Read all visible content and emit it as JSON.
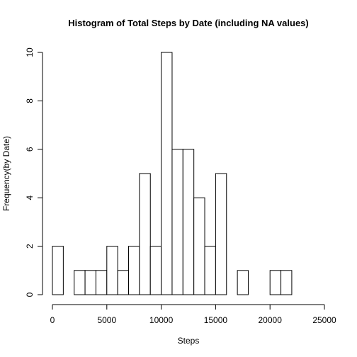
{
  "chart_data": {
    "type": "bar",
    "title": "Histogram of Total Steps by Date (including NA values)",
    "xlabel": "Steps",
    "ylabel": "Frequency(by Date)",
    "xlim": [
      0,
      25000
    ],
    "ylim": [
      0,
      10
    ],
    "bin_width": 1000,
    "bins": [
      {
        "start": 0,
        "end": 1000,
        "count": 2
      },
      {
        "start": 1000,
        "end": 2000,
        "count": 0
      },
      {
        "start": 2000,
        "end": 3000,
        "count": 1
      },
      {
        "start": 3000,
        "end": 4000,
        "count": 1
      },
      {
        "start": 4000,
        "end": 5000,
        "count": 1
      },
      {
        "start": 5000,
        "end": 6000,
        "count": 2
      },
      {
        "start": 6000,
        "end": 7000,
        "count": 1
      },
      {
        "start": 7000,
        "end": 8000,
        "count": 2
      },
      {
        "start": 8000,
        "end": 9000,
        "count": 5
      },
      {
        "start": 9000,
        "end": 10000,
        "count": 2
      },
      {
        "start": 10000,
        "end": 11000,
        "count": 10
      },
      {
        "start": 11000,
        "end": 12000,
        "count": 6
      },
      {
        "start": 12000,
        "end": 13000,
        "count": 6
      },
      {
        "start": 13000,
        "end": 14000,
        "count": 4
      },
      {
        "start": 14000,
        "end": 15000,
        "count": 2
      },
      {
        "start": 15000,
        "end": 16000,
        "count": 5
      },
      {
        "start": 16000,
        "end": 17000,
        "count": 0
      },
      {
        "start": 17000,
        "end": 18000,
        "count": 1
      },
      {
        "start": 18000,
        "end": 19000,
        "count": 0
      },
      {
        "start": 19000,
        "end": 20000,
        "count": 0
      },
      {
        "start": 20000,
        "end": 21000,
        "count": 1
      },
      {
        "start": 21000,
        "end": 22000,
        "count": 1
      }
    ],
    "x_ticks": [
      0,
      5000,
      10000,
      15000,
      20000,
      25000
    ],
    "y_ticks": [
      0,
      2,
      4,
      6,
      8,
      10
    ],
    "grid": false,
    "legend": "none"
  }
}
